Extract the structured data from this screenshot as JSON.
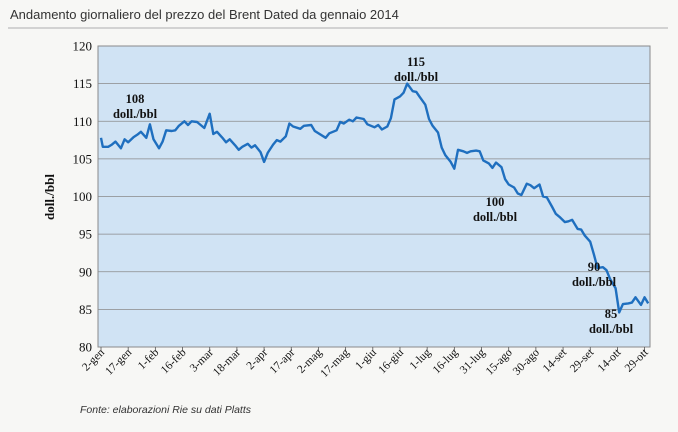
{
  "header": {
    "title": "Andamento giornaliero del prezzo del Brent Dated da gennaio 2014"
  },
  "footer": {
    "source": "Fonte: elaborazioni Rie su dati Platts"
  },
  "colors": {
    "plot_background": "#d0e3f4",
    "gridline": "#8a8a8a",
    "line": "#1f6fbf"
  },
  "chart_data": {
    "type": "line",
    "title": "Andamento giornaliero del prezzo del Brent Dated da gennaio 2014",
    "xlabel": "",
    "ylabel": "doll./bbl",
    "ylim": [
      80,
      120
    ],
    "yticks": [
      80,
      85,
      90,
      95,
      100,
      105,
      110,
      115,
      120
    ],
    "grid": true,
    "x_tick_labels": [
      "2-gen",
      "17-gen",
      "1-feb",
      "16-feb",
      "3-mar",
      "18-mar",
      "2-apr",
      "17-apr",
      "2-mag",
      "17-mag",
      "1-giu",
      "16-giu",
      "1-lug",
      "16-lug",
      "31-lug",
      "15-ago",
      "30-ago",
      "14-set",
      "29-set",
      "14-ott",
      "29-ott"
    ],
    "series": [
      {
        "values": [
          [
            "2-gen",
            107.8
          ],
          [
            "3-gen",
            106.6
          ],
          [
            "6-gen",
            106.6
          ],
          [
            "8-gen",
            106.9
          ],
          [
            "10-gen",
            107.3
          ],
          [
            "13-gen",
            106.4
          ],
          [
            "15-gen",
            107.6
          ],
          [
            "17-gen",
            107.2
          ],
          [
            "20-gen",
            107.9
          ],
          [
            "22-gen",
            108.2
          ],
          [
            "24-gen",
            108.6
          ],
          [
            "27-gen",
            107.8
          ],
          [
            "29-gen",
            109.6
          ],
          [
            "31-gen",
            107.6
          ],
          [
            "3-feb",
            106.4
          ],
          [
            "5-feb",
            107.3
          ],
          [
            "7-feb",
            108.8
          ],
          [
            "10-feb",
            108.7
          ],
          [
            "12-feb",
            108.8
          ],
          [
            "14-feb",
            109.4
          ],
          [
            "17-feb",
            110.0
          ],
          [
            "19-feb",
            109.5
          ],
          [
            "21-feb",
            110.0
          ],
          [
            "24-feb",
            109.9
          ],
          [
            "26-feb",
            109.5
          ],
          [
            "28-feb",
            109.1
          ],
          [
            "3-mar",
            111.0
          ],
          [
            "5-mar",
            108.3
          ],
          [
            "7-mar",
            108.6
          ],
          [
            "10-mar",
            107.8
          ],
          [
            "12-mar",
            107.2
          ],
          [
            "14-mar",
            107.6
          ],
          [
            "17-mar",
            106.8
          ],
          [
            "19-mar",
            106.2
          ],
          [
            "21-mar",
            106.6
          ],
          [
            "24-mar",
            107.0
          ],
          [
            "26-mar",
            106.5
          ],
          [
            "28-mar",
            106.8
          ],
          [
            "31-mar",
            105.9
          ],
          [
            "2-apr",
            104.6
          ],
          [
            "4-apr",
            105.8
          ],
          [
            "7-apr",
            106.9
          ],
          [
            "9-apr",
            107.5
          ],
          [
            "11-apr",
            107.3
          ],
          [
            "14-apr",
            108.0
          ],
          [
            "16-apr",
            109.7
          ],
          [
            "18-apr",
            109.3
          ],
          [
            "22-apr",
            109.0
          ],
          [
            "24-apr",
            109.4
          ],
          [
            "28-apr",
            109.5
          ],
          [
            "30-apr",
            108.7
          ],
          [
            "2-mag",
            108.4
          ],
          [
            "6-mag",
            107.8
          ],
          [
            "8-mag",
            108.4
          ],
          [
            "12-mag",
            108.8
          ],
          [
            "14-mag",
            109.9
          ],
          [
            "16-mag",
            109.7
          ],
          [
            "19-mag",
            110.2
          ],
          [
            "21-mag",
            110.0
          ],
          [
            "23-mag",
            110.5
          ],
          [
            "27-mag",
            110.3
          ],
          [
            "29-mag",
            109.6
          ],
          [
            "2-giu",
            109.2
          ],
          [
            "4-giu",
            109.5
          ],
          [
            "6-giu",
            108.9
          ],
          [
            "9-giu",
            109.3
          ],
          [
            "11-giu",
            110.4
          ],
          [
            "13-giu",
            112.9
          ],
          [
            "16-giu",
            113.3
          ],
          [
            "18-giu",
            113.8
          ],
          [
            "20-giu",
            115.0
          ],
          [
            "23-giu",
            114.0
          ],
          [
            "25-giu",
            113.9
          ],
          [
            "27-giu",
            113.2
          ],
          [
            "30-giu",
            112.2
          ],
          [
            "2-lug",
            110.3
          ],
          [
            "4-lug",
            109.4
          ],
          [
            "7-lug",
            108.5
          ],
          [
            "9-lug",
            106.5
          ],
          [
            "11-lug",
            105.5
          ],
          [
            "14-lug",
            104.6
          ],
          [
            "16-lug",
            103.7
          ],
          [
            "18-lug",
            106.2
          ],
          [
            "21-lug",
            106.0
          ],
          [
            "23-lug",
            105.8
          ],
          [
            "25-lug",
            106.0
          ],
          [
            "28-lug",
            106.1
          ],
          [
            "30-lug",
            106.0
          ],
          [
            "1-ago",
            104.8
          ],
          [
            "4-ago",
            104.4
          ],
          [
            "6-ago",
            103.8
          ],
          [
            "8-ago",
            104.5
          ],
          [
            "11-ago",
            103.9
          ],
          [
            "13-ago",
            102.3
          ],
          [
            "15-ago",
            101.6
          ],
          [
            "18-ago",
            101.2
          ],
          [
            "20-ago",
            100.4
          ],
          [
            "22-ago",
            100.2
          ],
          [
            "25-ago",
            101.7
          ],
          [
            "27-ago",
            101.5
          ],
          [
            "29-ago",
            101.1
          ],
          [
            "1-set",
            101.6
          ],
          [
            "3-set",
            100.0
          ],
          [
            "5-set",
            99.9
          ],
          [
            "8-set",
            98.6
          ],
          [
            "10-set",
            97.7
          ],
          [
            "12-set",
            97.3
          ],
          [
            "15-set",
            96.6
          ],
          [
            "17-set",
            96.7
          ],
          [
            "19-set",
            96.9
          ],
          [
            "22-set",
            95.7
          ],
          [
            "24-set",
            95.6
          ],
          [
            "26-set",
            94.8
          ],
          [
            "29-set",
            94.0
          ],
          [
            "1-ott",
            92.3
          ],
          [
            "3-ott",
            90.5
          ],
          [
            "6-ott",
            90.6
          ],
          [
            "8-ott",
            90.2
          ],
          [
            "10-ott",
            89.0
          ],
          [
            "13-ott",
            87.8
          ],
          [
            "15-ott",
            84.6
          ],
          [
            "17-ott",
            85.7
          ],
          [
            "20-ott",
            85.8
          ],
          [
            "22-ott",
            85.9
          ],
          [
            "24-ott",
            86.6
          ],
          [
            "27-ott",
            85.6
          ],
          [
            "29-ott",
            86.6
          ],
          [
            "31-ott",
            85.8
          ]
        ]
      }
    ],
    "annotations": [
      {
        "value": "108",
        "unit": "doll./bbl"
      },
      {
        "value": "115",
        "unit": "doll./bbl"
      },
      {
        "value": "100",
        "unit": "doll./bbl"
      },
      {
        "value": "90",
        "unit": "doll./bbl"
      },
      {
        "value": "85",
        "unit": "doll./bbl"
      }
    ]
  }
}
